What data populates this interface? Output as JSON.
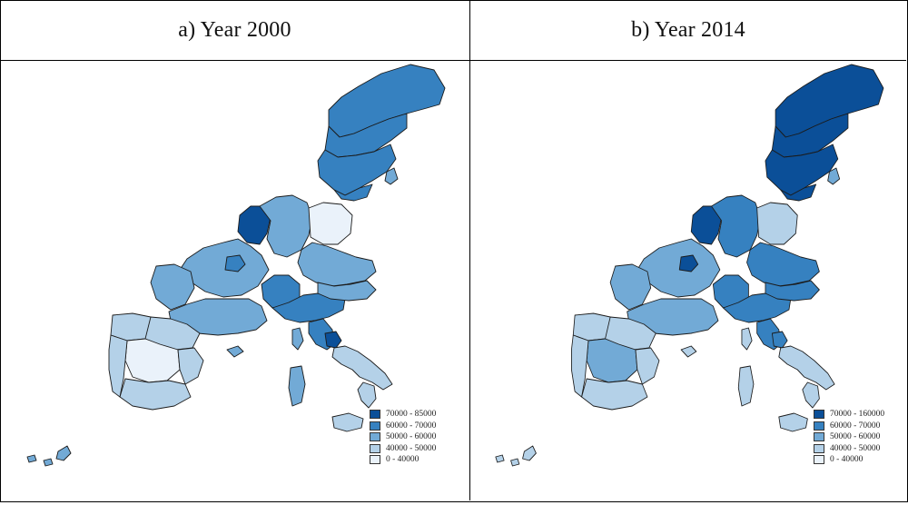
{
  "panels": [
    {
      "title": "a) Year 2000",
      "legend": [
        {
          "label": "70000 - 85000",
          "color": "#0b4f98"
        },
        {
          "label": "60000 - 70000",
          "color": "#3681c0"
        },
        {
          "label": "50000 - 60000",
          "color": "#72aad6"
        },
        {
          "label": "40000 - 50000",
          "color": "#b4d1e8"
        },
        {
          "label": "0 - 40000",
          "color": "#eaf2fa"
        }
      ],
      "colors": {
        "scandinavia_north": "#3681c0",
        "scandinavia_south": "#3681c0",
        "scandinavia_island": "#72aad6",
        "benelux": "#0b4f98",
        "germany_west": "#72aad6",
        "germany_east": "#eaf2fa",
        "france": "#72aad6",
        "paris": "#3681c0",
        "alps_north_italy": "#3681c0",
        "austria": "#72aad6",
        "italy_south": "#b4d1e8",
        "rome": "#0b4f98",
        "iberia": "#b4d1e8",
        "iberia_center": "#eaf2fa",
        "islands": "#72aad6"
      }
    },
    {
      "title": "b) Year 2014",
      "legend": [
        {
          "label": "70000 - 160000",
          "color": "#0b4f98"
        },
        {
          "label": "60000 - 70000",
          "color": "#3681c0"
        },
        {
          "label": "50000 - 60000",
          "color": "#72aad6"
        },
        {
          "label": "40000 - 50000",
          "color": "#b4d1e8"
        },
        {
          "label": "0 - 40000",
          "color": "#eaf2fa"
        }
      ],
      "colors": {
        "scandinavia_north": "#0b4f98",
        "scandinavia_south": "#0b4f98",
        "scandinavia_island": "#72aad6",
        "benelux": "#0b4f98",
        "germany_west": "#3681c0",
        "germany_east": "#b4d1e8",
        "france": "#72aad6",
        "paris": "#0b4f98",
        "alps_north_italy": "#3681c0",
        "austria": "#3681c0",
        "italy_south": "#b4d1e8",
        "rome": "#3681c0",
        "iberia": "#b4d1e8",
        "iberia_center": "#72aad6",
        "islands": "#b4d1e8"
      }
    }
  ]
}
